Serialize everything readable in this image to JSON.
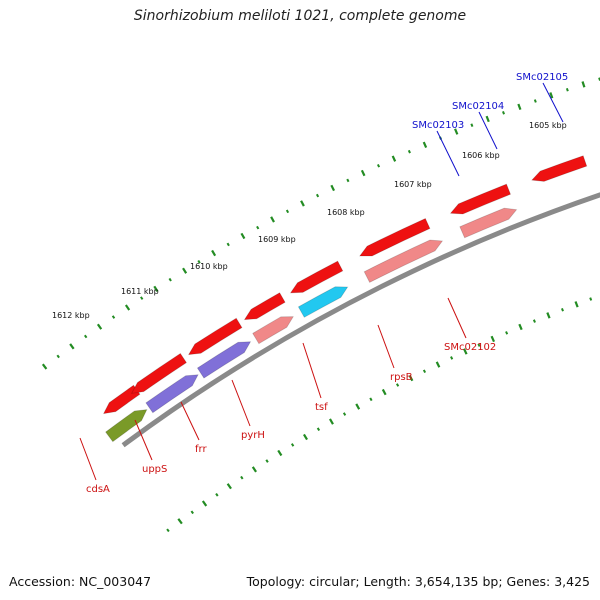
{
  "title": "Sinorhizobium meliloti 1021, complete genome",
  "footer": {
    "accession": "Accession: NC_003047",
    "topology": "Topology: circular; Length: 3,654,135 bp; Genes: 3,425"
  },
  "colors": {
    "backbone": "#8a8a8a",
    "tick": "#238c23",
    "red": "#ee1111",
    "pink": "#f08888",
    "purple": "#8070d8",
    "cyan": "#22c8f0",
    "blue": "#1818e0",
    "olive": "#7a9a28",
    "darkgray": "#606060",
    "red_label": "#cc1111",
    "blue_label": "#1111cc"
  },
  "scale_labels": [
    {
      "text": "1605 kbp",
      "kbp": 1605
    },
    {
      "text": "1606 kbp",
      "kbp": 1606
    },
    {
      "text": "1607 kbp",
      "kbp": 1607
    },
    {
      "text": "1608 kbp",
      "kbp": 1608
    },
    {
      "text": "1609 kbp",
      "kbp": 1609
    },
    {
      "text": "1610 kbp",
      "kbp": 1610
    },
    {
      "text": "1611 kbp",
      "kbp": 1611
    },
    {
      "text": "1612 kbp",
      "kbp": 1612
    }
  ],
  "gene_labels": [
    {
      "text": "SMc02105",
      "color": "blue"
    },
    {
      "text": "SMc02104",
      "color": "blue"
    },
    {
      "text": "SMc02103",
      "color": "blue"
    },
    {
      "text": "SMc02102",
      "color": "red"
    },
    {
      "text": "rpsB",
      "color": "red"
    },
    {
      "text": "tsf",
      "color": "red"
    },
    {
      "text": "pyrH",
      "color": "red"
    },
    {
      "text": "frr",
      "color": "red"
    },
    {
      "text": "uppS",
      "color": "red"
    },
    {
      "text": "cdsA",
      "color": "red"
    }
  ]
}
